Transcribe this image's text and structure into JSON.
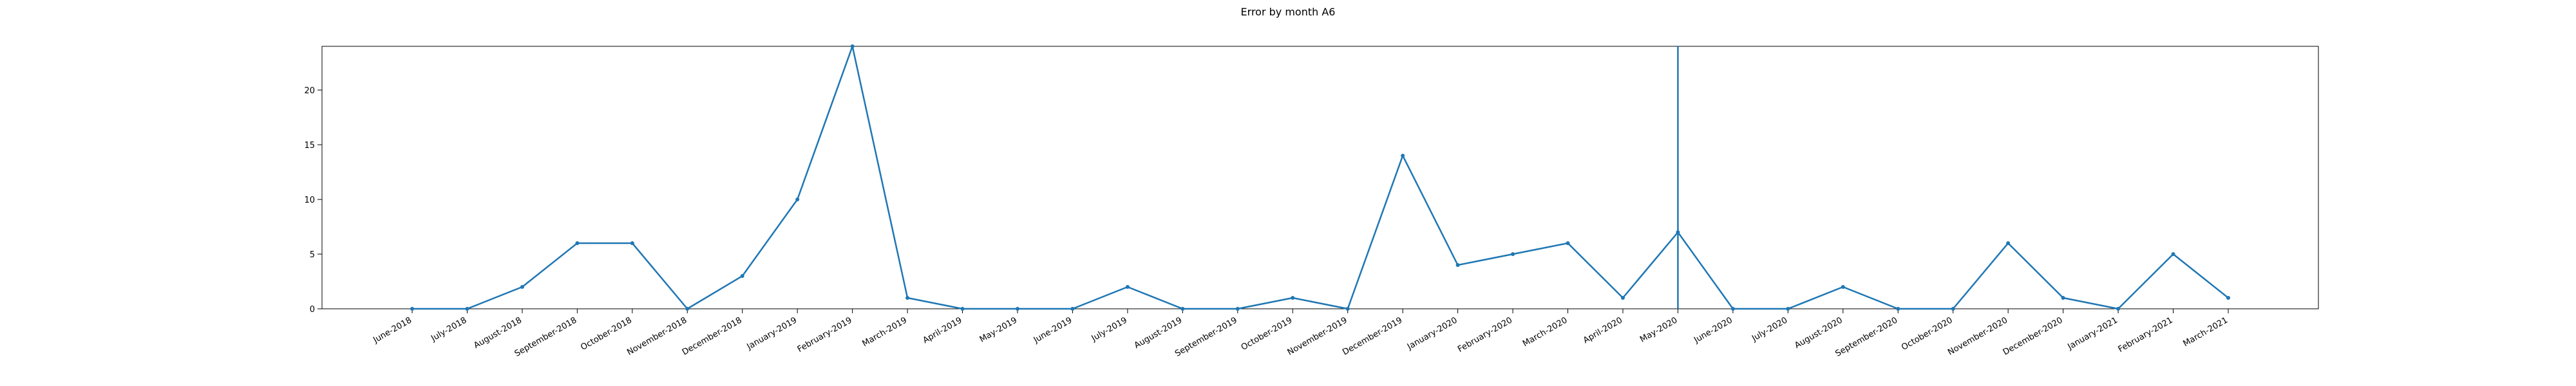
{
  "chart_data": {
    "type": "line",
    "title": "Error by month A6",
    "xlabel": "",
    "ylabel": "",
    "categories": [
      "June-2018",
      "July-2018",
      "August-2018",
      "September-2018",
      "October-2018",
      "November-2018",
      "December-2018",
      "January-2019",
      "February-2019",
      "March-2019",
      "April-2019",
      "May-2019",
      "June-2019",
      "July-2019",
      "August-2019",
      "September-2019",
      "October-2019",
      "November-2019",
      "December-2019",
      "January-2020",
      "February-2020",
      "March-2020",
      "April-2020",
      "May-2020",
      "June-2020",
      "July-2020",
      "August-2020",
      "September-2020",
      "October-2020",
      "November-2020",
      "December-2020",
      "January-2021",
      "February-2021",
      "March-2021"
    ],
    "values": [
      0,
      0,
      2,
      6,
      6,
      0,
      3,
      10,
      24,
      1,
      0,
      0,
      0,
      2,
      0,
      0,
      1,
      0,
      14,
      4,
      5,
      6,
      1,
      7,
      0,
      0,
      2,
      0,
      0,
      6,
      1,
      0,
      5,
      1
    ],
    "ylim": [
      0,
      24
    ],
    "yticks": [
      0,
      5,
      10,
      15,
      20
    ],
    "vline_category": "May-2020",
    "grid": false,
    "line_color": "#1f77b4"
  }
}
